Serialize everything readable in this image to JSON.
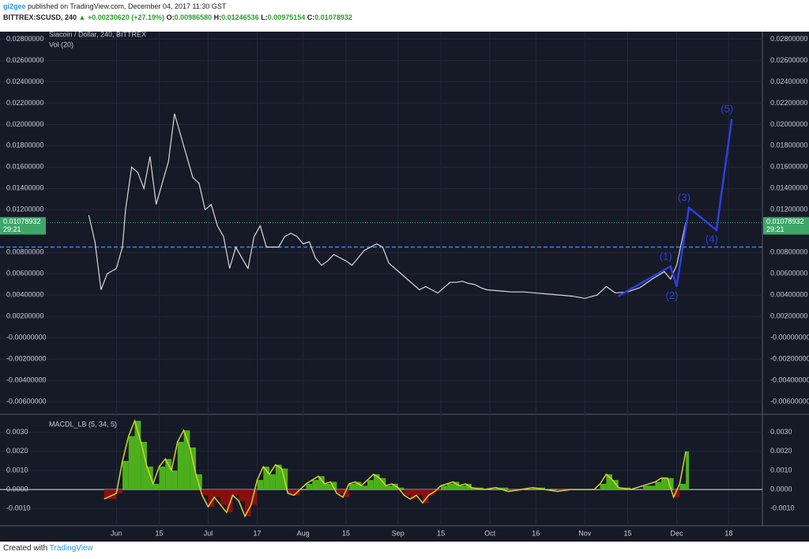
{
  "header": {
    "author": "gi2gee",
    "published": "published on TradingView.com, December 04, 2017 11:30 GST",
    "symbol": "BITTREX:SCUSD, 240",
    "change": "▲ +0.00230620 (+27.19%)",
    "o_label": "O:",
    "o": "0.00986580",
    "h_label": "H:",
    "h": "0.01246536",
    "l_label": "L:",
    "l": "0.00975154",
    "c_label": "C:",
    "c": "0.01078932"
  },
  "footer": {
    "text": "Created with",
    "brand": "TradingView"
  },
  "chart_data": [
    {
      "type": "price",
      "title": "Siacoin / Dollar, 240, BITTREX",
      "subtitle": "Vol (20)",
      "x": [
        -9,
        -7,
        -5,
        -3,
        0,
        2,
        3,
        5,
        7,
        9,
        11,
        13,
        15,
        17,
        19,
        21,
        23,
        25,
        27,
        29,
        31,
        33,
        35,
        37,
        39,
        41,
        43,
        45,
        47,
        49,
        51,
        53,
        55,
        57,
        59,
        61,
        63,
        65,
        67,
        69,
        71,
        73,
        75,
        77,
        79,
        81,
        83,
        85,
        87,
        89,
        91,
        93,
        95,
        97,
        99,
        101,
        103,
        105,
        107,
        109,
        111,
        113,
        115,
        117,
        119,
        121,
        125,
        129,
        133,
        137,
        141,
        145,
        149,
        153,
        157,
        160,
        163,
        167,
        171,
        175,
        179,
        181,
        183,
        185,
        186
      ],
      "values": [
        0.0115,
        0.009,
        0.0045,
        0.006,
        0.0065,
        0.0085,
        0.012,
        0.016,
        0.0155,
        0.014,
        0.017,
        0.0125,
        0.0145,
        0.0165,
        0.021,
        0.019,
        0.017,
        0.015,
        0.0145,
        0.012,
        0.0125,
        0.0105,
        0.0095,
        0.0065,
        0.0085,
        0.0075,
        0.0065,
        0.0095,
        0.0105,
        0.0085,
        0.0085,
        0.0085,
        0.0095,
        0.0098,
        0.0095,
        0.0088,
        0.009,
        0.0075,
        0.0068,
        0.0072,
        0.0078,
        0.0075,
        0.0072,
        0.0068,
        0.0075,
        0.0082,
        0.0085,
        0.0088,
        0.0085,
        0.007,
        0.0065,
        0.006,
        0.0055,
        0.005,
        0.0045,
        0.0048,
        0.0045,
        0.0042,
        0.0047,
        0.0052,
        0.0052,
        0.0053,
        0.0051,
        0.005,
        0.0047,
        0.0045,
        0.0044,
        0.0043,
        0.0043,
        0.0042,
        0.0041,
        0.004,
        0.0039,
        0.0037,
        0.004,
        0.0048,
        0.0042,
        0.0043,
        0.0047,
        0.0055,
        0.0062,
        0.0055,
        0.0068,
        0.0095,
        0.0108
      ],
      "color": "#d8d8d8",
      "waves": {
        "labels": [
          "(1)",
          "(2)",
          "(3)",
          "(4)",
          "(5)"
        ],
        "x": [
          164,
          181,
          183,
          187,
          196,
          201
        ],
        "values": [
          0.0039,
          0.0067,
          0.0048,
          0.0122,
          0.0101,
          0.0205
        ],
        "color": "#2f3fe0"
      },
      "level": 0.0085,
      "level_color": "#3b82f6",
      "last": {
        "value": 0.01078932,
        "label": "0.01078932",
        "countdown": "29:21"
      },
      "xlim": [
        -38,
        211
      ],
      "xticks": [
        {
          "value": 0,
          "label": "Jun"
        },
        {
          "value": 14,
          "label": "15"
        },
        {
          "value": 30,
          "label": "Jul"
        },
        {
          "value": 46,
          "label": "17"
        },
        {
          "value": 61,
          "label": "Aug"
        },
        {
          "value": 75,
          "label": "15"
        },
        {
          "value": 92,
          "label": "Sep"
        },
        {
          "value": 106,
          "label": "15"
        },
        {
          "value": 122,
          "label": "Oct"
        },
        {
          "value": 137,
          "label": "16"
        },
        {
          "value": 153,
          "label": "Nov"
        },
        {
          "value": 167,
          "label": "15"
        },
        {
          "value": 183,
          "label": "Dec"
        },
        {
          "value": 200,
          "label": "18"
        }
      ],
      "ylim": [
        -0.0071,
        0.0287
      ],
      "yticks": [
        {
          "value": 0.028,
          "label": "0.02800000"
        },
        {
          "value": 0.026,
          "label": "0.02600000"
        },
        {
          "value": 0.024,
          "label": "0.02400000"
        },
        {
          "value": 0.022,
          "label": "0.02200000"
        },
        {
          "value": 0.02,
          "label": "0.02000000"
        },
        {
          "value": 0.018,
          "label": "0.01800000"
        },
        {
          "value": 0.016,
          "label": "0.01600000"
        },
        {
          "value": 0.014,
          "label": "0.01400000"
        },
        {
          "value": 0.012,
          "label": "0.01200000"
        },
        {
          "value": 0.008,
          "label": "0.00800000"
        },
        {
          "value": 0.006,
          "label": "0.00600000"
        },
        {
          "value": 0.004,
          "label": "0.00400000"
        },
        {
          "value": 0.002,
          "label": "0.00200000"
        },
        {
          "value": 0,
          "label": "-0.00000000"
        },
        {
          "value": -0.002,
          "label": "-0.00200000"
        },
        {
          "value": -0.004,
          "label": "-0.00400000"
        },
        {
          "value": -0.006,
          "label": "-0.00600000"
        }
      ],
      "grid": true
    },
    {
      "type": "macd",
      "title": "MACDL_LB (5, 34, 5)",
      "x": [
        -4,
        0,
        2,
        4,
        6,
        8,
        10,
        12,
        14,
        16,
        18,
        20,
        22,
        24,
        26,
        28,
        30,
        32,
        34,
        36,
        38,
        40,
        42,
        44,
        46,
        48,
        50,
        52,
        54,
        56,
        58,
        60,
        62,
        64,
        66,
        68,
        70,
        72,
        74,
        76,
        78,
        80,
        82,
        84,
        86,
        88,
        90,
        92,
        94,
        96,
        98,
        100,
        102,
        104,
        106,
        108,
        110,
        112,
        114,
        116,
        120,
        124,
        128,
        132,
        136,
        140,
        144,
        148,
        152,
        156,
        158,
        160,
        162,
        164,
        168,
        172,
        176,
        178,
        180,
        182,
        184,
        186
      ],
      "values": [
        -0.0005,
        -0.0002,
        0.0015,
        0.0028,
        0.0036,
        0.0025,
        0.0012,
        0.0003,
        0.0012,
        0.0016,
        0.001,
        0.0025,
        0.0031,
        0.0022,
        0.0008,
        -0.0003,
        -0.0009,
        -0.0004,
        -0.0008,
        -0.0012,
        -0.0003,
        -0.0006,
        -0.0014,
        -0.0008,
        0.0005,
        0.0012,
        0.0008,
        0.0013,
        0.0011,
        -0.0002,
        -0.0003,
        0,
        0.0003,
        0.0005,
        0.0007,
        0.0003,
        0.0004,
        -0.0002,
        -0.0004,
        0.0003,
        0.0004,
        0.0002,
        0.0005,
        0.0008,
        0.0006,
        0.0002,
        0.0003,
        0.0001,
        -0.0003,
        -0.0005,
        -0.0003,
        -0.0007,
        -0.0003,
        -0.0001,
        0.0002,
        0.0003,
        0.0004,
        0.0002,
        0.0003,
        0.0001,
        0,
        0.0001,
        -0.0001,
        0,
        0.0001,
        0,
        -0.0001,
        0,
        0,
        0,
        0.0003,
        0.0008,
        0.0005,
        0.0001,
        0,
        0.0002,
        0.0004,
        0.0006,
        0.0006,
        -0.0004,
        0.0003,
        0.002
      ],
      "color": "#d6d03a",
      "positive_color": "#4caf1c",
      "negative_color": "#8b0f0f",
      "ylim": [
        -0.0019,
        0.0039
      ],
      "yticks": [
        {
          "value": 0.003,
          "label": "0.0030"
        },
        {
          "value": 0.002,
          "label": "0.0020"
        },
        {
          "value": 0.001,
          "label": "0.0010"
        },
        {
          "value": 0,
          "label": "0.0000"
        },
        {
          "value": -0.001,
          "label": "-0.0010"
        }
      ]
    }
  ]
}
